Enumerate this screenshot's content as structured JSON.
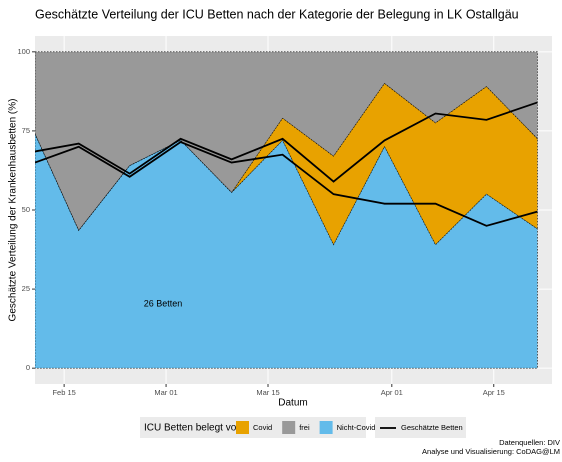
{
  "chart_data": {
    "type": "stacked-area",
    "title": "Geschätzte Verteilung der ICU Betten nach der Kategorie der Belegung in LK Ostallgäu",
    "x_label": "Datum",
    "y_label": "Geschätzte Verteilung der Krankenhausbetten (%)",
    "x": [
      "Feb 11",
      "Feb 17",
      "Feb 24",
      "Mar 03",
      "Mar 10",
      "Mar 17",
      "Mar 24",
      "Mar 31",
      "Apr 07",
      "Apr 14",
      "Apr 21"
    ],
    "xlim": [
      "Feb 11",
      "Apr 23"
    ],
    "xticks": [
      "Feb 15",
      "Mar 01",
      "Mar 15",
      "Apr 01",
      "Apr 15"
    ],
    "ylim": [
      -5,
      105
    ],
    "yticks": [
      0,
      25,
      50,
      75,
      100
    ],
    "grid": true,
    "legend_title": "ICU Betten belegt von:",
    "series": [
      {
        "name": "Nicht-Covid",
        "color": "#63bbea",
        "values": [
          74,
          43.5,
          64,
          72,
          55.5,
          72,
          39,
          70,
          39,
          55,
          44
        ]
      },
      {
        "name": "Covid",
        "color": "#e8a200",
        "values": [
          0,
          0,
          0,
          0,
          0,
          7,
          28,
          20,
          38.5,
          34,
          28.5
        ]
      },
      {
        "name": "frei",
        "color": "#999999",
        "values": [
          26,
          56.5,
          36,
          28,
          44.5,
          21,
          33,
          10,
          22.5,
          11,
          27.5
        ]
      }
    ],
    "lines": {
      "name": "Geschätzte Betten",
      "color": "#000000",
      "values": [
        [
          68.5,
          71,
          61.5,
          72.5,
          66,
          72.5,
          59,
          72,
          80.5,
          78.5,
          84
        ],
        [
          65,
          70,
          60.5,
          71.5,
          65,
          67.5,
          55,
          52,
          52,
          45,
          49.5
        ]
      ]
    },
    "annotation": "26 Betten",
    "source": [
      "Datenquellen: DIV",
      "Analyse und Visualisierung: CoDAG@LM"
    ]
  }
}
